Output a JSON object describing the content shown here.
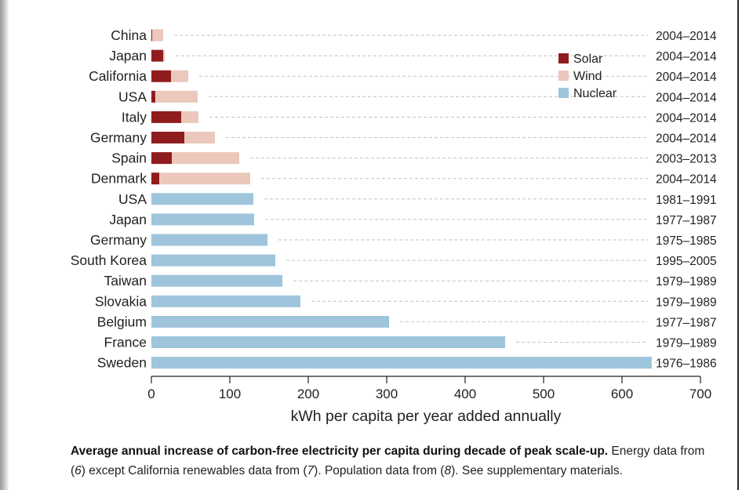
{
  "chart_data": {
    "type": "bar",
    "orientation": "horizontal",
    "stacked": true,
    "xlabel": "kWh per capita per year added annually",
    "xlim": [
      0,
      700
    ],
    "xticks": [
      0,
      100,
      200,
      300,
      400,
      500,
      600,
      700
    ],
    "legend_position": "top-right",
    "categories": [
      "China",
      "Japan",
      "California",
      "USA",
      "Italy",
      "Germany",
      "Spain",
      "Denmark",
      "USA",
      "Japan",
      "Germany",
      "South Korea",
      "Taiwan",
      "Slovakia",
      "Belgium",
      "France",
      "Sweden"
    ],
    "periods": [
      "2004–2014",
      "2004–2014",
      "2004–2014",
      "2004–2014",
      "2004–2014",
      "2004–2014",
      "2003–2013",
      "2004–2014",
      "1981–1991",
      "1977–1987",
      "1975–1985",
      "1995–2005",
      "1979–1989",
      "1979–1989",
      "1977–1987",
      "1979–1989",
      "1976–1986"
    ],
    "series": [
      {
        "name": "Solar",
        "color": "#8f1d1d",
        "values": [
          1,
          15,
          25,
          5,
          38,
          42,
          26,
          10,
          0,
          0,
          0,
          0,
          0,
          0,
          0,
          0,
          0
        ]
      },
      {
        "name": "Wind",
        "color": "#ecc7bb",
        "values": [
          14,
          2,
          22,
          54,
          22,
          39,
          86,
          116,
          0,
          0,
          0,
          0,
          0,
          0,
          0,
          0,
          0
        ]
      },
      {
        "name": "Nuclear",
        "color": "#9ec5dc",
        "values": [
          0,
          0,
          0,
          0,
          0,
          0,
          0,
          0,
          130,
          131,
          148,
          158,
          167,
          190,
          303,
          451,
          638
        ]
      }
    ]
  },
  "caption": {
    "bold": "Average annual increase of carbon-free electricity per capita during decade of peak scale-up.",
    "part1": " Energy data from (",
    "ref1": "6",
    "part2": ") except California renewables data from (",
    "ref2": "7",
    "part3": "). Population data from (",
    "ref3": "8",
    "part4": "). See supplementary materials."
  }
}
